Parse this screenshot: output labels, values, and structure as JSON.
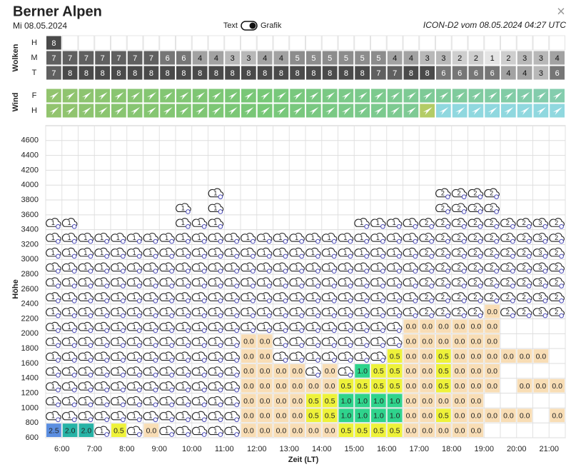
{
  "header": {
    "title": "Berner Alpen",
    "date": "Mi 08.05.2024",
    "close": "×"
  },
  "toggle": {
    "left": "Text",
    "right": "Grafik"
  },
  "source": "ICON-D2 vom 08.05.2024 04:27 UTC",
  "clouds": {
    "label": "Wolken",
    "rows": [
      {
        "name": "H",
        "values": [
          8,
          null,
          null,
          null,
          null,
          null,
          null,
          null,
          null,
          null,
          null,
          null,
          null,
          null,
          null,
          null,
          null,
          null,
          null,
          null,
          null,
          null,
          null,
          null,
          null,
          null,
          null,
          null,
          null,
          null,
          null,
          null
        ]
      },
      {
        "name": "M",
        "values": [
          7,
          7,
          7,
          7,
          7,
          7,
          7,
          6,
          6,
          4,
          4,
          3,
          3,
          4,
          4,
          5,
          5,
          5,
          5,
          5,
          5,
          4,
          4,
          3,
          3,
          2,
          2,
          1,
          2,
          3,
          3,
          4
        ]
      },
      {
        "name": "T",
        "values": [
          7,
          8,
          8,
          8,
          8,
          8,
          8,
          8,
          8,
          8,
          8,
          8,
          8,
          8,
          8,
          8,
          8,
          8,
          8,
          8,
          7,
          7,
          8,
          8,
          6,
          6,
          6,
          6,
          4,
          4,
          3,
          6
        ]
      }
    ]
  },
  "wind": {
    "label": "Wind",
    "rows": [
      "F",
      "H"
    ]
  },
  "altitude": {
    "label": "Höhe",
    "lim": [
      600,
      4800
    ],
    "ticks": [
      600,
      800,
      1000,
      1200,
      1400,
      1600,
      1800,
      2000,
      2200,
      2400,
      2600,
      2800,
      3000,
      3200,
      3400,
      3600,
      3800,
      4000,
      4200,
      4400,
      4600
    ]
  },
  "time": {
    "label": "Zeit (LT)",
    "ticks": [
      "6:00",
      "7:00",
      "8:00",
      "9:00",
      "10:00",
      "11:00",
      "12:00",
      "13:00",
      "14:00",
      "15:00",
      "16:00",
      "17:00",
      "18:00",
      "19:00",
      "20:00",
      "21:00"
    ]
  },
  "columns": [
    [
      "2.5",
      1,
      1,
      1,
      1,
      1,
      1,
      1,
      1,
      1,
      1,
      1,
      1,
      1,
      1
    ],
    [
      "2.0",
      1,
      1,
      1,
      1,
      1,
      1,
      1,
      1,
      1,
      1,
      1,
      1,
      1,
      1
    ],
    [
      "2.0",
      1,
      1,
      1,
      1,
      1,
      1,
      1,
      1,
      1,
      1,
      1,
      1,
      1
    ],
    [
      1,
      1,
      1,
      1,
      1,
      1,
      1,
      1,
      1,
      1,
      1,
      1,
      1,
      1
    ],
    [
      "0.5",
      1,
      1,
      1,
      1,
      1,
      1,
      1,
      1,
      1,
      1,
      1,
      1,
      1
    ],
    [
      1,
      1,
      1,
      1,
      1,
      1,
      1,
      1,
      1,
      1,
      1,
      1,
      1,
      1
    ],
    [
      "0.0",
      1,
      1,
      1,
      1,
      1,
      1,
      1,
      1,
      1,
      1,
      1,
      1,
      1
    ],
    [
      1,
      1,
      1,
      1,
      1,
      1,
      1,
      1,
      1,
      1,
      1,
      1,
      1,
      1
    ],
    [
      1,
      1,
      1,
      1,
      1,
      1,
      1,
      1,
      1,
      1,
      1,
      1,
      1,
      1,
      1,
      1
    ],
    [
      1,
      1,
      1,
      1,
      1,
      1,
      1,
      1,
      1,
      1,
      1,
      1,
      1,
      1,
      1
    ],
    [
      1,
      1,
      1,
      1,
      1,
      1,
      1,
      1,
      1,
      1,
      1,
      1,
      1,
      1,
      1,
      1,
      1
    ],
    [
      1,
      1,
      1,
      1,
      1,
      1,
      1,
      1,
      1,
      1,
      1,
      1,
      1,
      1
    ],
    [
      "0.0",
      "0.0",
      "0.0",
      "0.0",
      "0.0",
      "0.0",
      "0.0",
      1,
      1,
      1,
      1,
      1,
      1,
      1
    ],
    [
      "0.0",
      "0.0",
      "0.0",
      "0.0",
      "0.0",
      "0.0",
      "0.0",
      1,
      1,
      1,
      1,
      1,
      1,
      1
    ],
    [
      "0.0",
      "0.0",
      "0.0",
      "0.0",
      "0.0",
      1,
      1,
      1,
      1,
      1,
      1,
      1,
      1,
      1
    ],
    [
      "0.0",
      "0.0",
      "0.0",
      "0.0",
      "0.0",
      1,
      1,
      1,
      1,
      1,
      1,
      1,
      1,
      1
    ],
    [
      "0.0",
      "0.5",
      "0.5",
      "0.0",
      1,
      1,
      1,
      1,
      1,
      1,
      1,
      1,
      1,
      1
    ],
    [
      "0.0",
      "0.5",
      "0.5",
      "0.0",
      "0.0",
      1,
      1,
      1,
      1,
      1,
      1,
      1,
      1,
      1
    ],
    [
      "0.5",
      "1.0",
      "1.0",
      "0.5",
      1,
      1,
      1,
      1,
      1,
      1,
      1,
      1,
      1,
      1
    ],
    [
      "0.5",
      "1.0",
      "1.0",
      "0.5",
      "1.0",
      1,
      1,
      1,
      1,
      1,
      1,
      1,
      1,
      1,
      1
    ],
    [
      "0.5",
      "1.0",
      "1.0",
      "0.5",
      "0.5",
      1,
      1,
      1,
      1,
      1,
      1,
      1,
      1,
      1,
      1
    ],
    [
      "0.5",
      "1.0",
      "1.0",
      "0.5",
      "0.5",
      "0.5",
      1,
      1,
      1,
      1,
      1,
      1,
      1,
      1,
      1
    ],
    [
      "0.0",
      "0.0",
      "0.0",
      "0.0",
      "0.0",
      "0.0",
      "0.0",
      "0.0",
      1,
      1,
      1,
      1,
      1,
      1,
      1
    ],
    [
      "0.0",
      "0.0",
      "0.0",
      "0.0",
      "0.0",
      "0.0",
      "0.0",
      "0.0",
      2,
      2,
      2,
      2,
      2,
      2,
      2
    ],
    [
      "0.0",
      "0.5",
      "0.0",
      "0.5",
      "0.5",
      "0.5",
      "0.0",
      "0.0",
      2,
      2,
      2,
      2,
      2,
      2,
      2,
      2,
      2
    ],
    [
      "0.0",
      "0.0",
      "0.0",
      "0.0",
      "0.0",
      "0.0",
      "0.0",
      "0.0",
      2,
      2,
      2,
      2,
      2,
      2,
      2,
      2,
      2
    ],
    [
      "0.0",
      "0.0",
      "0.0",
      "0.0",
      "0.0",
      "0.0",
      "0.0",
      "0.0",
      2,
      2,
      2,
      2,
      2,
      2,
      2,
      2,
      2
    ],
    [
      null,
      "0.0",
      null,
      "0.0",
      "0.0",
      "0.0",
      "0.0",
      "0.0",
      "0.0",
      2,
      2,
      2,
      2,
      2,
      2,
      2,
      2
    ],
    [
      null,
      "0.0",
      null,
      null,
      null,
      "0.0",
      null,
      null,
      2,
      2,
      2,
      2,
      2,
      2,
      2
    ],
    [
      null,
      "0.0",
      null,
      "0.0",
      null,
      "0.0",
      null,
      null,
      2,
      2,
      2,
      2,
      2,
      2,
      2
    ],
    [
      null,
      null,
      null,
      "0.0",
      null,
      "0.0",
      null,
      null,
      3,
      3,
      3,
      3,
      3,
      3,
      3
    ],
    [
      null,
      "0.0",
      null,
      "0.0",
      null,
      null,
      null,
      null,
      2,
      2,
      2,
      2,
      2,
      2,
      2
    ]
  ]
}
